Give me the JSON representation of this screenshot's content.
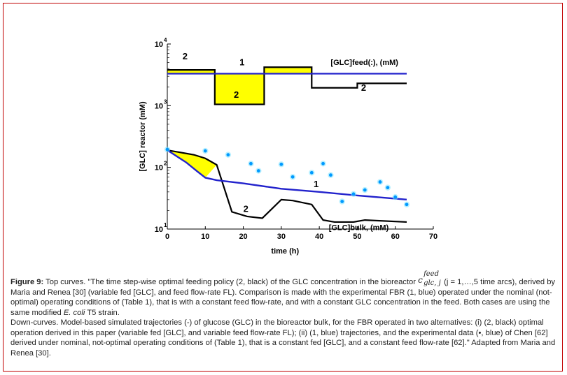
{
  "chart_data": {
    "type": "line",
    "ylabel": "[GLC] reactor (mM)",
    "xlabel": "time (h)",
    "xlim": [
      0,
      70
    ],
    "ylim_log10": [
      1,
      4
    ],
    "x_ticks": [
      "0",
      "10",
      "20",
      "30",
      "40",
      "50",
      "60",
      "70"
    ],
    "y_ticks": [
      {
        "base": "10",
        "exp": "1",
        "value": 10
      },
      {
        "base": "10",
        "exp": "2",
        "value": 100
      },
      {
        "base": "10",
        "exp": "3",
        "value": 1000
      },
      {
        "base": "10",
        "exp": "4",
        "value": 10000
      }
    ],
    "annotations": {
      "feed_label": "[GLC]feed(:), (mM)",
      "bulk_label": "[GLC]bulk, (mM)",
      "top_nominal": "1",
      "top_optimal_left": "2",
      "top_optimal_mid": "2",
      "top_optimal_right": "2",
      "bottom_nominal": "1",
      "bottom_optimal": "2"
    },
    "series": [
      {
        "name": "feed_optimal",
        "color": "#000000",
        "points": [
          [
            0,
            3800
          ],
          [
            12.5,
            3800
          ],
          [
            12.5,
            1050
          ],
          [
            25.5,
            1050
          ],
          [
            25.5,
            4200
          ],
          [
            38,
            4200
          ],
          [
            38,
            1950
          ],
          [
            50,
            1950
          ],
          [
            50,
            2300
          ],
          [
            63,
            2300
          ]
        ]
      },
      {
        "name": "feed_nominal",
        "color": "#2222cc",
        "points": [
          [
            0,
            3300
          ],
          [
            63,
            3300
          ]
        ]
      },
      {
        "name": "bulk_optimal",
        "color": "#000000",
        "points": [
          [
            0,
            190
          ],
          [
            7,
            160
          ],
          [
            10,
            140
          ],
          [
            13,
            110
          ],
          [
            17,
            19
          ],
          [
            21,
            16
          ],
          [
            25,
            15
          ],
          [
            30,
            30
          ],
          [
            33,
            29
          ],
          [
            38,
            25
          ],
          [
            41,
            14
          ],
          [
            44,
            13
          ],
          [
            49,
            13
          ],
          [
            52,
            14
          ],
          [
            63,
            13
          ]
        ]
      },
      {
        "name": "bulk_nominal",
        "color": "#2222cc",
        "points": [
          [
            0,
            190
          ],
          [
            5,
            120
          ],
          [
            8,
            85
          ],
          [
            10,
            68
          ],
          [
            13,
            62
          ],
          [
            20,
            55
          ],
          [
            30,
            45
          ],
          [
            40,
            40
          ],
          [
            50,
            35
          ],
          [
            63,
            30
          ]
        ]
      },
      {
        "name": "experimental_chen",
        "color": "#00bfff",
        "points": [
          [
            0,
            195
          ],
          [
            10,
            185
          ],
          [
            16,
            160
          ],
          [
            22,
            115
          ],
          [
            24,
            88
          ],
          [
            30,
            112
          ],
          [
            33,
            70
          ],
          [
            38,
            82
          ],
          [
            41,
            115
          ],
          [
            43,
            75
          ],
          [
            46,
            28
          ],
          [
            49,
            37
          ],
          [
            52,
            43
          ],
          [
            56,
            58
          ],
          [
            58,
            47
          ],
          [
            60,
            33
          ],
          [
            63,
            25
          ]
        ]
      }
    ]
  },
  "caption": {
    "fig_label": "Figure 9:",
    "top_part1": " Top curves. \"The time step-wise optimal feeding policy (2, black) of the GLC concentration in the bioreactor ",
    "sym_c": "c",
    "sym_sup": "feed",
    "sym_sub": "glc, j",
    "top_part2": " (j = 1,…,5 time arcs), derived by Maria and Renea [30] (variable fed [GLC], and feed flow-rate FL). Comparison is made with the experimental FBR (1, blue) operated under the nominal (not-optimal) operating conditions of (Table 1), that is with a constant feed flow-rate, and with a constant GLC concentration in the feed. Both cases are using the same modified ",
    "top_italic": "E. coli",
    "top_part3": " T5 strain.",
    "down_text": "Down-curves. Model-based simulated trajectories (-) of glucose (GLC) in the bioreactor bulk, for the FBR operated in two alternatives: (i) (2, black) optimal operation derived in this paper (variable fed [GLC], and variable feed flow-rate FL); (ii) (1, blue) trajectories, and the experimental data (•, blue) of Chen [62] derived under nominal, not-optimal operating conditions of (Table 1), that is a constant fed [GLC], and a constant feed flow-rate [62].\" Adapted from Maria and Renea [30]."
  }
}
